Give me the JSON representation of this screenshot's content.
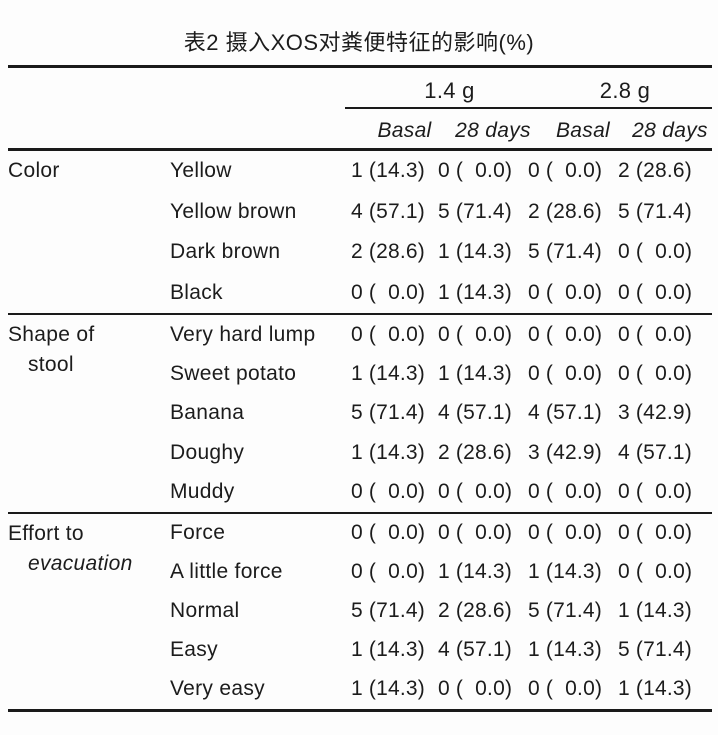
{
  "page": {
    "background": "#fdfdfd",
    "text_color": "#1c1c1c",
    "rule_color": "#1a1a1a"
  },
  "title": "表2 摄入XOS对粪便特征的影响(%)",
  "table": {
    "dose_groups": [
      "1.4 g",
      "2.8 g"
    ],
    "subheaders": [
      "Basal",
      "28 days",
      "Basal",
      "28 days"
    ],
    "sections": [
      {
        "category_line1": "Color",
        "category_line2": "",
        "rows": [
          {
            "label": "Yellow",
            "values": [
              "1 (14.3)",
              "0 (  0.0)",
              "0 (  0.0)",
              "2 (28.6)"
            ]
          },
          {
            "label": "Yellow brown",
            "values": [
              "4 (57.1)",
              "5 (71.4)",
              "2 (28.6)",
              "5 (71.4)"
            ]
          },
          {
            "label": "Dark brown",
            "values": [
              "2 (28.6)",
              "1 (14.3)",
              "5 (71.4)",
              "0 (  0.0)"
            ]
          },
          {
            "label": "Black",
            "values": [
              "0 (  0.0)",
              "1 (14.3)",
              "0 (  0.0)",
              "0 (  0.0)"
            ]
          }
        ]
      },
      {
        "category_line1": "Shape of",
        "category_line2": "stool",
        "rows": [
          {
            "label": "Very hard lump",
            "values": [
              "0 (  0.0)",
              "0 (  0.0)",
              "0 (  0.0)",
              "0 (  0.0)"
            ]
          },
          {
            "label": "Sweet potato",
            "values": [
              "1 (14.3)",
              "1 (14.3)",
              "0 (  0.0)",
              "0 (  0.0)"
            ]
          },
          {
            "label": "Banana",
            "values": [
              "5 (71.4)",
              "4 (57.1)",
              "4 (57.1)",
              "3 (42.9)"
            ]
          },
          {
            "label": "Doughy",
            "values": [
              "1 (14.3)",
              "2 (28.6)",
              "3 (42.9)",
              "4 (57.1)"
            ]
          },
          {
            "label": "Muddy",
            "values": [
              "0 (  0.0)",
              "0 (  0.0)",
              "0 (  0.0)",
              "0 (  0.0)"
            ]
          }
        ]
      },
      {
        "category_line1": "Effort to",
        "category_line2": "evacuation",
        "rows": [
          {
            "label": "Force",
            "values": [
              "0 (  0.0)",
              "0 (  0.0)",
              "0 (  0.0)",
              "0 (  0.0)"
            ]
          },
          {
            "label": "A little force",
            "values": [
              "0 (  0.0)",
              "1 (14.3)",
              "1 (14.3)",
              "0 (  0.0)"
            ]
          },
          {
            "label": "Normal",
            "values": [
              "5 (71.4)",
              "2 (28.6)",
              "5 (71.4)",
              "1 (14.3)"
            ]
          },
          {
            "label": "Easy",
            "values": [
              "1 (14.3)",
              "4 (57.1)",
              "1 (14.3)",
              "5 (71.4)"
            ]
          },
          {
            "label": "Very easy",
            "values": [
              "1 (14.3)",
              "0 (  0.0)",
              "0 (  0.0)",
              "1 (14.3)"
            ]
          }
        ]
      }
    ]
  }
}
